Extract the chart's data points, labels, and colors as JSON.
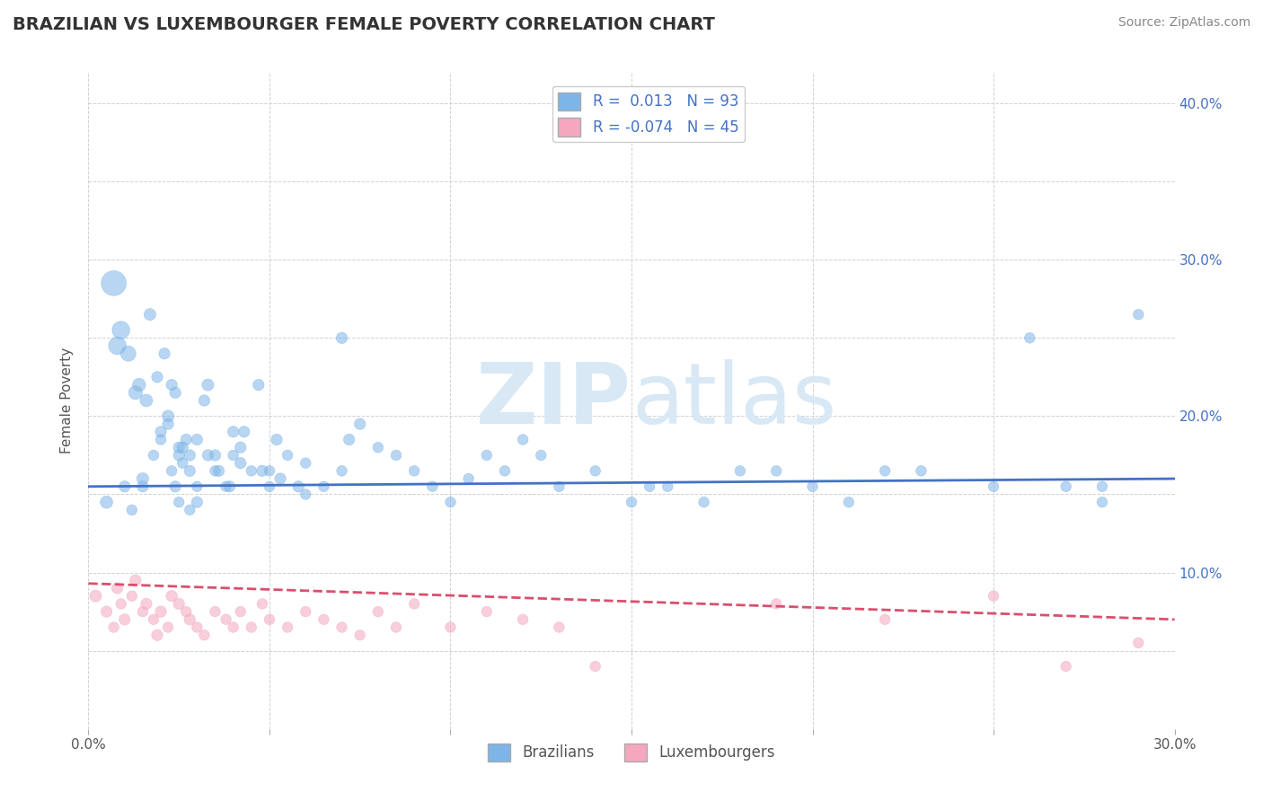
{
  "title": "BRAZILIAN VS LUXEMBOURGER FEMALE POVERTY CORRELATION CHART",
  "source": "Source: ZipAtlas.com",
  "ylabel": "Female Poverty",
  "x_min": 0.0,
  "x_max": 0.3,
  "y_min": 0.0,
  "y_max": 0.42,
  "x_ticks": [
    0.0,
    0.05,
    0.1,
    0.15,
    0.2,
    0.25,
    0.3
  ],
  "x_tick_labels": [
    "0.0%",
    "",
    "",
    "",
    "",
    "",
    "30.0%"
  ],
  "y_ticks": [
    0.0,
    0.05,
    0.1,
    0.15,
    0.2,
    0.25,
    0.3,
    0.35,
    0.4
  ],
  "y_tick_labels": [
    "",
    "",
    "10.0%",
    "",
    "20.0%",
    "",
    "30.0%",
    "",
    "40.0%"
  ],
  "blue_color": "#7EB5E8",
  "pink_color": "#F4A7BE",
  "blue_line_color": "#4472C4",
  "pink_line_color": "#D94F6E",
  "legend_blue_label": "R =  0.013   N = 93",
  "legend_pink_label": "R = -0.074   N = 45",
  "legend_bottom_blue": "Brazilians",
  "legend_bottom_pink": "Luxembourgers",
  "watermark_zip": "ZIP",
  "watermark_atlas": "atlas",
  "brazil_x": [
    0.005,
    0.01,
    0.012,
    0.015,
    0.015,
    0.018,
    0.02,
    0.02,
    0.022,
    0.022,
    0.023,
    0.024,
    0.025,
    0.025,
    0.025,
    0.026,
    0.027,
    0.028,
    0.028,
    0.03,
    0.03,
    0.032,
    0.033,
    0.035,
    0.035,
    0.038,
    0.04,
    0.04,
    0.042,
    0.043,
    0.045,
    0.047,
    0.05,
    0.05,
    0.052,
    0.055,
    0.06,
    0.06,
    0.065,
    0.07,
    0.07,
    0.072,
    0.075,
    0.08,
    0.085,
    0.09,
    0.095,
    0.1,
    0.105,
    0.11,
    0.115,
    0.12,
    0.125,
    0.13,
    0.14,
    0.15,
    0.155,
    0.16,
    0.17,
    0.18,
    0.19,
    0.2,
    0.21,
    0.22,
    0.23,
    0.25,
    0.26,
    0.27,
    0.28,
    0.29,
    0.28,
    0.007,
    0.008,
    0.009,
    0.011,
    0.013,
    0.014,
    0.016,
    0.017,
    0.019,
    0.021,
    0.023,
    0.024,
    0.026,
    0.028,
    0.03,
    0.033,
    0.036,
    0.039,
    0.042,
    0.048,
    0.053,
    0.058
  ],
  "brazil_y": [
    0.145,
    0.155,
    0.14,
    0.16,
    0.155,
    0.175,
    0.19,
    0.185,
    0.2,
    0.195,
    0.165,
    0.155,
    0.145,
    0.18,
    0.175,
    0.17,
    0.185,
    0.14,
    0.165,
    0.155,
    0.145,
    0.21,
    0.22,
    0.175,
    0.165,
    0.155,
    0.19,
    0.175,
    0.18,
    0.19,
    0.165,
    0.22,
    0.155,
    0.165,
    0.185,
    0.175,
    0.15,
    0.17,
    0.155,
    0.165,
    0.25,
    0.185,
    0.195,
    0.18,
    0.175,
    0.165,
    0.155,
    0.145,
    0.16,
    0.175,
    0.165,
    0.185,
    0.175,
    0.155,
    0.165,
    0.145,
    0.155,
    0.155,
    0.145,
    0.165,
    0.165,
    0.155,
    0.145,
    0.165,
    0.165,
    0.155,
    0.25,
    0.155,
    0.155,
    0.265,
    0.145,
    0.285,
    0.245,
    0.255,
    0.24,
    0.215,
    0.22,
    0.21,
    0.265,
    0.225,
    0.24,
    0.22,
    0.215,
    0.18,
    0.175,
    0.185,
    0.175,
    0.165,
    0.155,
    0.17,
    0.165,
    0.16,
    0.155
  ],
  "brazil_size": [
    100,
    80,
    70,
    90,
    80,
    70,
    80,
    70,
    90,
    80,
    70,
    80,
    70,
    80,
    80,
    70,
    80,
    70,
    80,
    70,
    80,
    80,
    90,
    80,
    70,
    70,
    80,
    70,
    80,
    80,
    70,
    80,
    70,
    70,
    80,
    70,
    70,
    70,
    70,
    70,
    80,
    80,
    80,
    70,
    70,
    70,
    70,
    70,
    70,
    70,
    70,
    70,
    70,
    70,
    70,
    70,
    70,
    70,
    70,
    70,
    70,
    70,
    70,
    70,
    70,
    70,
    70,
    70,
    70,
    70,
    70,
    400,
    200,
    200,
    150,
    120,
    110,
    100,
    90,
    80,
    80,
    80,
    80,
    80,
    80,
    80,
    80,
    80,
    80,
    80,
    80,
    80,
    80
  ],
  "lux_x": [
    0.002,
    0.005,
    0.007,
    0.008,
    0.009,
    0.01,
    0.012,
    0.013,
    0.015,
    0.016,
    0.018,
    0.019,
    0.02,
    0.022,
    0.023,
    0.025,
    0.027,
    0.028,
    0.03,
    0.032,
    0.035,
    0.038,
    0.04,
    0.042,
    0.045,
    0.048,
    0.05,
    0.055,
    0.06,
    0.065,
    0.07,
    0.075,
    0.08,
    0.085,
    0.09,
    0.1,
    0.11,
    0.12,
    0.13,
    0.14,
    0.19,
    0.22,
    0.25,
    0.27,
    0.29
  ],
  "lux_y": [
    0.085,
    0.075,
    0.065,
    0.09,
    0.08,
    0.07,
    0.085,
    0.095,
    0.075,
    0.08,
    0.07,
    0.06,
    0.075,
    0.065,
    0.085,
    0.08,
    0.075,
    0.07,
    0.065,
    0.06,
    0.075,
    0.07,
    0.065,
    0.075,
    0.065,
    0.08,
    0.07,
    0.065,
    0.075,
    0.07,
    0.065,
    0.06,
    0.075,
    0.065,
    0.08,
    0.065,
    0.075,
    0.07,
    0.065,
    0.04,
    0.08,
    0.07,
    0.085,
    0.04,
    0.055
  ],
  "lux_size": [
    90,
    80,
    70,
    80,
    70,
    80,
    70,
    80,
    70,
    80,
    70,
    80,
    80,
    70,
    80,
    80,
    70,
    80,
    70,
    70,
    70,
    70,
    70,
    70,
    70,
    70,
    70,
    70,
    70,
    70,
    70,
    70,
    70,
    70,
    70,
    70,
    70,
    70,
    70,
    70,
    70,
    70,
    70,
    70,
    70
  ],
  "brazil_trend_x": [
    0.0,
    0.3
  ],
  "brazil_trend_y": [
    0.155,
    0.16
  ],
  "lux_trend_x": [
    0.0,
    0.3
  ],
  "lux_trend_y": [
    0.093,
    0.07
  ],
  "grid_color": "#CCCCCC",
  "background_color": "#FFFFFF"
}
